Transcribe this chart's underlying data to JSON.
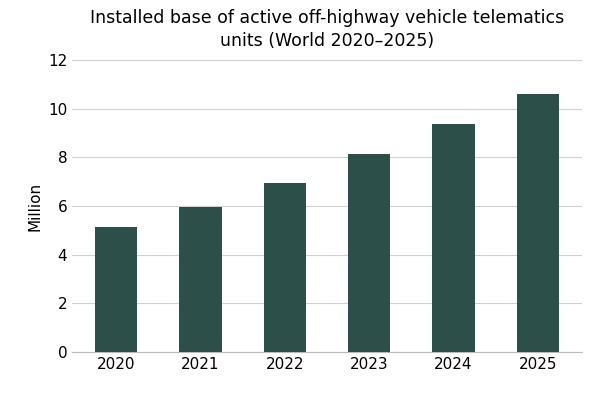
{
  "title": "Installed base of active off-highway vehicle telematics\nunits (World 2020–2025)",
  "years": [
    2020,
    2021,
    2022,
    2023,
    2024,
    2025
  ],
  "values": [
    5.15,
    5.95,
    6.95,
    8.15,
    9.35,
    10.6
  ],
  "bar_color": "#2d4f4a",
  "ylabel": "Million",
  "ylim": [
    0,
    12
  ],
  "yticks": [
    0,
    2,
    4,
    6,
    8,
    10,
    12
  ],
  "background_color": "#ffffff",
  "title_fontsize": 12.5,
  "axis_fontsize": 11,
  "tick_fontsize": 11,
  "bar_width": 0.5,
  "grid_color": "#d0d0d0",
  "spine_bottom_color": "#bbbbbb"
}
